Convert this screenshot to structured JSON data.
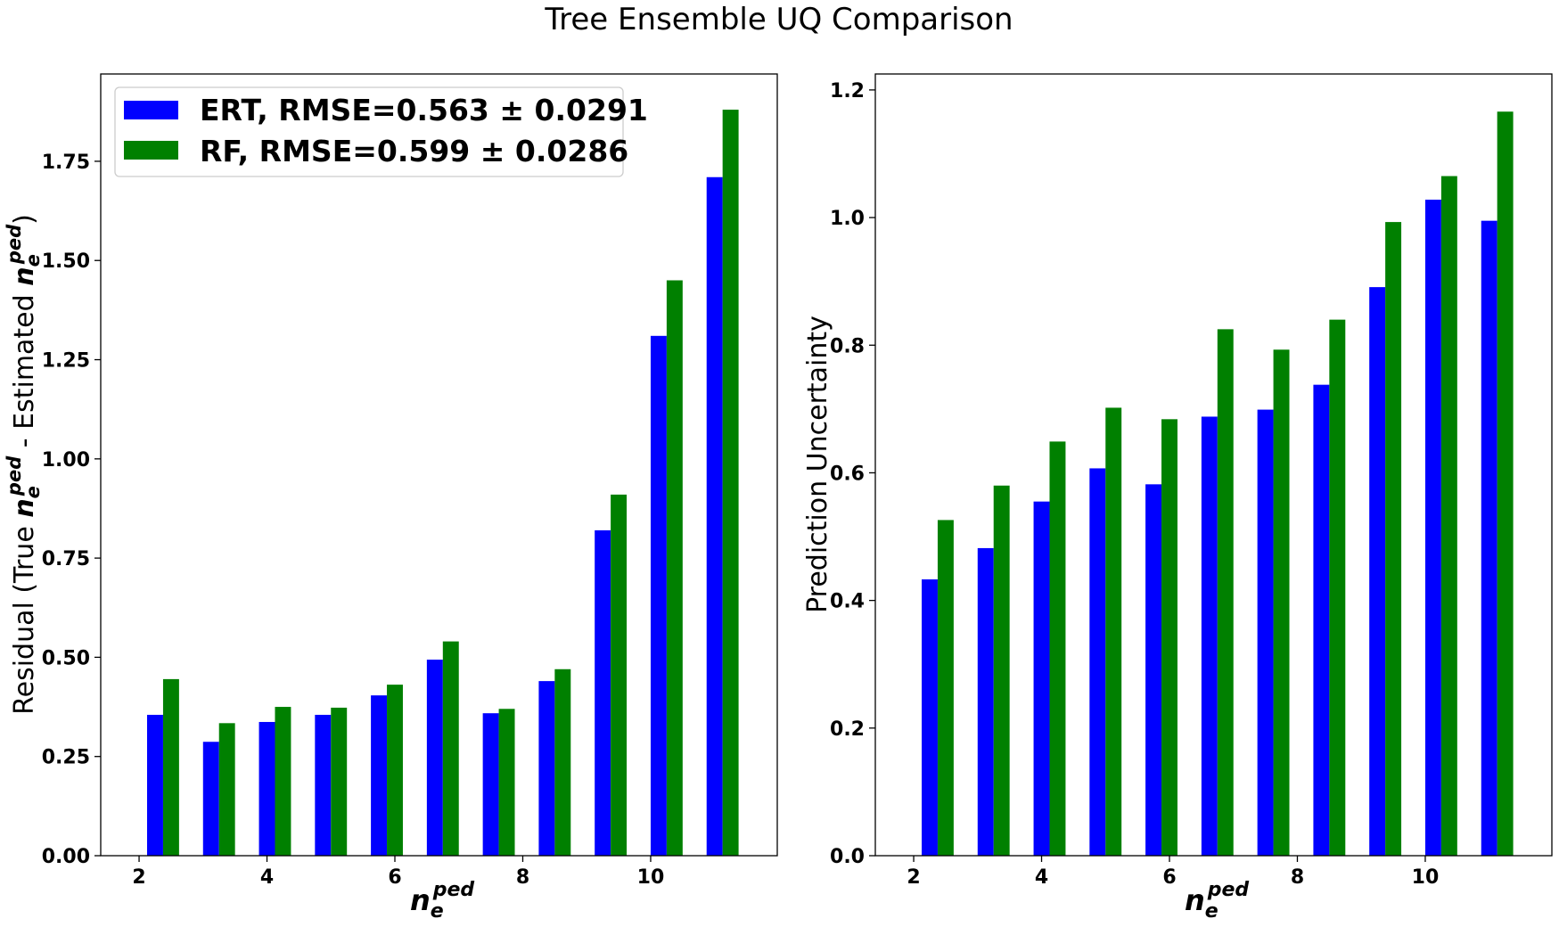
{
  "figure": {
    "title": "Tree Ensemble UQ Comparison"
  },
  "chart_data": [
    {
      "type": "bar",
      "title": "",
      "xlabel_base": "n",
      "xlabel_sub": "e",
      "xlabel_sup": "ped",
      "ylabel": {
        "prefix": "Residual (True ",
        "middle": " - Estimated ",
        "suffix": ")",
        "var_base": "n",
        "var_sub": "e",
        "var_sup": "ped"
      },
      "x": [
        2.375,
        3.25,
        4.125,
        5.0,
        5.875,
        6.75,
        7.625,
        8.5,
        9.375,
        10.25,
        11.125
      ],
      "series": [
        {
          "name": "ERT, RMSE=0.563 ± 0.0291",
          "color": "#0000ff",
          "values": [
            0.355,
            0.287,
            0.337,
            0.355,
            0.404,
            0.494,
            0.359,
            0.44,
            0.82,
            1.31,
            1.71
          ]
        },
        {
          "name": "RF, RMSE=0.599 ± 0.0286",
          "color": "#008000",
          "values": [
            0.445,
            0.334,
            0.375,
            0.373,
            0.431,
            0.54,
            0.37,
            0.47,
            0.91,
            1.45,
            1.88
          ]
        }
      ],
      "xticks": [
        "2",
        "4",
        "6",
        "8",
        "10"
      ],
      "xtick_values": [
        2,
        4,
        6,
        8,
        10
      ],
      "yticks": [
        "0.00",
        "0.25",
        "0.50",
        "0.75",
        "1.00",
        "1.25",
        "1.50",
        "1.75"
      ],
      "ytick_values": [
        0,
        0.25,
        0.5,
        0.75,
        1.0,
        1.25,
        1.5,
        1.75
      ],
      "xlim": [
        1.4,
        11.98
      ],
      "ylim": [
        0,
        1.97
      ],
      "legend_position": "upper-left"
    },
    {
      "type": "bar",
      "title": "",
      "xlabel_base": "n",
      "xlabel_sub": "e",
      "xlabel_sup": "ped",
      "ylabel": "Prediction Uncertainty",
      "x": [
        2.375,
        3.25,
        4.125,
        5.0,
        5.875,
        6.75,
        7.625,
        8.5,
        9.375,
        10.25,
        11.125
      ],
      "series": [
        {
          "name": "ERT",
          "color": "#0000ff",
          "values": [
            0.433,
            0.482,
            0.555,
            0.607,
            0.582,
            0.688,
            0.699,
            0.738,
            0.891,
            1.028,
            0.995
          ]
        },
        {
          "name": "RF",
          "color": "#008000",
          "values": [
            0.526,
            0.58,
            0.649,
            0.702,
            0.684,
            0.825,
            0.793,
            0.84,
            0.993,
            1.065,
            1.166
          ]
        }
      ],
      "xticks": [
        "2",
        "4",
        "6",
        "8",
        "10"
      ],
      "xtick_values": [
        2,
        4,
        6,
        8,
        10
      ],
      "yticks": [
        "0.0",
        "0.2",
        "0.4",
        "0.6",
        "0.8",
        "1.0",
        "1.2"
      ],
      "ytick_values": [
        0,
        0.2,
        0.4,
        0.6,
        0.8,
        1.0,
        1.2
      ],
      "xlim": [
        1.4,
        11.98
      ],
      "ylim": [
        0,
        1.225
      ],
      "legend_position": "none"
    }
  ]
}
